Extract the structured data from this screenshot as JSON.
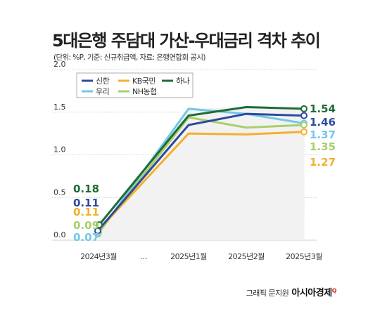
{
  "title": "5대은행 주담대 가산-우대금리 격차 추이",
  "subtitle": "(단위: %P, 기준: 신규취급액, 자료: 은행연합회 공시)",
  "credit": {
    "prefix": "그래픽 문지원",
    "brand": "아시아경제",
    "mark": "Q"
  },
  "chart_data": {
    "type": "line",
    "categories": [
      "2024년3월",
      "…",
      "2025년1월",
      "2025년2월",
      "2025년3월"
    ],
    "ylim": [
      0,
      2.0
    ],
    "yticks": [
      "0.0",
      "0.5",
      "1.0",
      "1.5",
      "2.0"
    ],
    "grid": true,
    "legend": "top-left",
    "series": [
      {
        "name": "신한",
        "color": "#2e4a9e",
        "values": [
          0.11,
          null,
          1.35,
          1.48,
          1.46
        ],
        "start_label": "0.11",
        "end_label": "1.46"
      },
      {
        "name": "KB국민",
        "color": "#f3b02b",
        "values": [
          0.11,
          null,
          1.25,
          1.24,
          1.27
        ],
        "start_label": "0.11",
        "end_label": "1.27"
      },
      {
        "name": "하나",
        "color": "#1f6b36",
        "values": [
          0.18,
          null,
          1.46,
          1.56,
          1.54
        ],
        "start_label": "0.18",
        "end_label": "1.54"
      },
      {
        "name": "우리",
        "color": "#72c8e8",
        "values": [
          0.07,
          null,
          1.54,
          1.48,
          1.37
        ],
        "start_label": "0.07",
        "end_label": "1.37"
      },
      {
        "name": "NH농협",
        "color": "#a9cf6b",
        "values": [
          0.09,
          null,
          1.44,
          1.32,
          1.35
        ],
        "start_label": "0.09",
        "end_label": "1.35"
      }
    ]
  }
}
